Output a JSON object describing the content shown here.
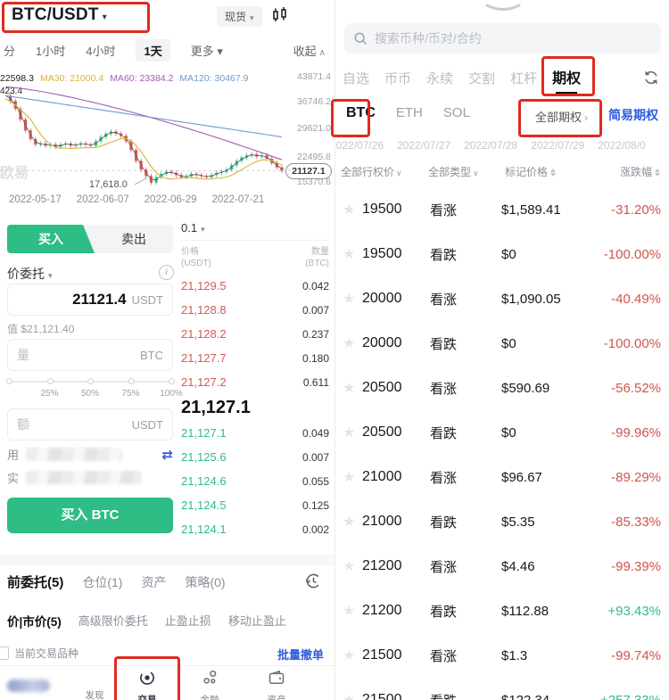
{
  "colors": {
    "green": "#2ebd85",
    "red": "#d0544e",
    "blue": "#2f5cdb",
    "annotation": "#e02a20"
  },
  "left": {
    "header": {
      "pair": "BTC/USDT",
      "market": "现货"
    },
    "timeframes": [
      {
        "label": "分"
      },
      {
        "label": "1小时"
      },
      {
        "label": "4小时"
      },
      {
        "label": "1天",
        "active": true
      },
      {
        "label": "更多 ▾"
      }
    ],
    "collapse": "收起",
    "legend": {
      "price": "22598.3",
      "ma30": "MA30: 21000.4",
      "ma60": "MA60: 23384.2",
      "ma120": "MA120: 30467.9"
    },
    "chart": {
      "y_top": "43871.4",
      "y_labels": [
        "36746.2",
        "29621.0",
        "22495.8"
      ],
      "y_bottom": "15370.6",
      "price_pill": "21127.1",
      "low_label": "17,618.0",
      "left_label": "423.4",
      "watermark": "欧易",
      "x_labels": [
        "2022-05-17",
        "2022-06-07",
        "2022-06-29",
        "2022-07-21"
      ]
    },
    "form": {
      "buy_tab": "买入",
      "sell_tab": "卖出",
      "order_type": "价委托",
      "info": "i",
      "price": "21121.4",
      "price_unit": "USDT",
      "value_text": "值 $21,121.40",
      "qty_placeholder": "量",
      "qty_unit": "BTC",
      "slider_marks": [
        "25%",
        "50%",
        "75%",
        "100%"
      ],
      "amount_placeholder": "额",
      "amount_unit": "USDT",
      "available_label": "用",
      "buyable_label": "实",
      "swap_icon": "⇄",
      "buy_button": "买入 BTC"
    },
    "book": {
      "precision": "0.1",
      "price_col": "价格",
      "price_col_unit": "(USDT)",
      "qty_col": "数量",
      "qty_col_unit": "(BTC)",
      "asks": [
        {
          "p": "21,129.5",
          "q": "0.042"
        },
        {
          "p": "21,128.8",
          "q": "0.007"
        },
        {
          "p": "21,128.2",
          "q": "0.237"
        },
        {
          "p": "21,127.7",
          "q": "0.180"
        },
        {
          "p": "21,127.2",
          "q": "0.611"
        }
      ],
      "last": "21,127.1",
      "bids": [
        {
          "p": "21,127.1",
          "q": "0.049"
        },
        {
          "p": "21,125.6",
          "q": "0.007"
        },
        {
          "p": "21,124.6",
          "q": "0.055"
        },
        {
          "p": "21,124.5",
          "q": "0.125"
        },
        {
          "p": "21,124.1",
          "q": "0.002"
        }
      ]
    },
    "orders": {
      "tabs": [
        {
          "label": "前委托(5)",
          "active": true
        },
        {
          "label": "仓位(1)"
        },
        {
          "label": "资产"
        },
        {
          "label": "策略(0)"
        }
      ],
      "subtabs": [
        {
          "label": "价|市价(5)",
          "active": true
        },
        {
          "label": "高级限价委托"
        },
        {
          "label": "止盈止损"
        },
        {
          "label": "移动止盈止"
        }
      ],
      "scope_filter": "当前交易品种",
      "batch_cancel": "批量撤单"
    },
    "nav": {
      "discover": "发现",
      "trade": "交易",
      "finance": "金融",
      "assets": "资产"
    }
  },
  "right": {
    "search_placeholder": "搜索币种/币对/合约",
    "tabs": [
      {
        "label": "自选"
      },
      {
        "label": "币币"
      },
      {
        "label": "永续"
      },
      {
        "label": "交割"
      },
      {
        "label": "杠杆"
      },
      {
        "label": "期权",
        "active": true
      }
    ],
    "coins": [
      {
        "label": "BTC",
        "active": true
      },
      {
        "label": "ETH"
      },
      {
        "label": "SOL"
      }
    ],
    "all_options": "全部期权",
    "all_options_chevron": "›",
    "simple_options": "简易期权",
    "dates": [
      "2022/07/26",
      "2022/07/27",
      "2022/07/28",
      "2022/07/29",
      "2022/08/0"
    ],
    "filters": {
      "strike": "全部行权价",
      "type": "全部类型",
      "mark_price": "标记价格",
      "change": "涨跌幅"
    },
    "option_rows": [
      {
        "strike": "19500",
        "type": "看涨",
        "price": "$1,589.41",
        "change": "-31.20%",
        "dir": "down"
      },
      {
        "strike": "19500",
        "type": "看跌",
        "price": "$0",
        "change": "-100.00%",
        "dir": "down"
      },
      {
        "strike": "20000",
        "type": "看涨",
        "price": "$1,090.05",
        "change": "-40.49%",
        "dir": "down"
      },
      {
        "strike": "20000",
        "type": "看跌",
        "price": "$0",
        "change": "-100.00%",
        "dir": "down"
      },
      {
        "strike": "20500",
        "type": "看涨",
        "price": "$590.69",
        "change": "-56.52%",
        "dir": "down"
      },
      {
        "strike": "20500",
        "type": "看跌",
        "price": "$0",
        "change": "-99.96%",
        "dir": "down"
      },
      {
        "strike": "21000",
        "type": "看涨",
        "price": "$96.67",
        "change": "-89.29%",
        "dir": "down"
      },
      {
        "strike": "21000",
        "type": "看跌",
        "price": "$5.35",
        "change": "-85.33%",
        "dir": "down"
      },
      {
        "strike": "21200",
        "type": "看涨",
        "price": "$4.46",
        "change": "-99.39%",
        "dir": "down"
      },
      {
        "strike": "21200",
        "type": "看跌",
        "price": "$112.88",
        "change": "+93.43%",
        "dir": "up"
      },
      {
        "strike": "21500",
        "type": "看涨",
        "price": "$1.3",
        "change": "-99.74%",
        "dir": "down"
      },
      {
        "strike": "21500",
        "type": "看跌",
        "price": "$122.34",
        "change": "+257.33%",
        "dir": "up"
      }
    ]
  }
}
